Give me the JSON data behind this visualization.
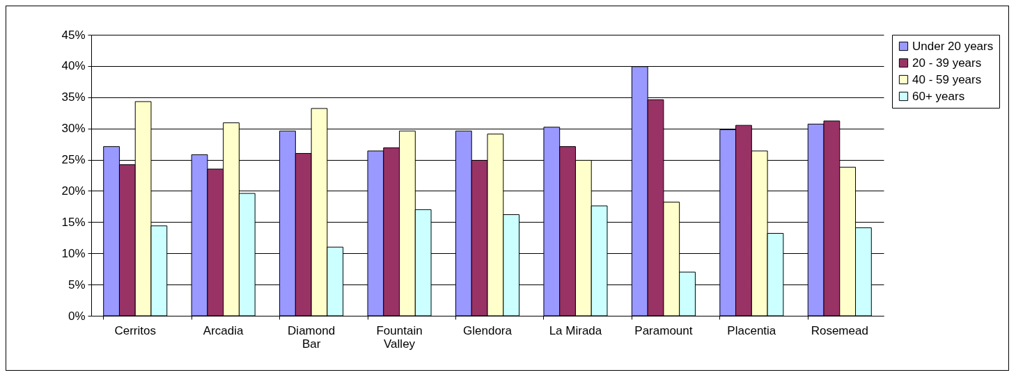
{
  "chart_data": {
    "type": "bar",
    "categories": [
      "Cerritos",
      "Arcadia",
      "Diamond Bar",
      "Fountain Valley",
      "Glendora",
      "La Mirada",
      "Paramount",
      "Placentia",
      "Rosemead"
    ],
    "series": [
      {
        "name": "Under 20 years",
        "color": "#9999ff",
        "values": [
          27.1,
          25.8,
          29.6,
          26.4,
          29.6,
          30.2,
          39.9,
          29.8,
          30.7
        ]
      },
      {
        "name": "20 - 39 years",
        "color": "#993366",
        "values": [
          24.2,
          23.5,
          26.0,
          26.9,
          24.9,
          27.1,
          34.6,
          30.5,
          31.2
        ]
      },
      {
        "name": "40 - 59 years",
        "color": "#ffffcc",
        "values": [
          34.3,
          30.9,
          33.2,
          29.6,
          29.1,
          24.9,
          18.2,
          26.4,
          23.8
        ]
      },
      {
        "name": "60+ years",
        "color": "#ccffff",
        "values": [
          14.4,
          19.6,
          11.0,
          17.0,
          16.2,
          17.6,
          7.0,
          13.2,
          14.1
        ]
      }
    ],
    "ylim": [
      0,
      45
    ],
    "yticks": [
      {
        "value": 0,
        "label": "0%"
      },
      {
        "value": 5,
        "label": "5%"
      },
      {
        "value": 10,
        "label": "10%"
      },
      {
        "value": 15,
        "label": "15%"
      },
      {
        "value": 20,
        "label": "20%"
      },
      {
        "value": 25,
        "label": "25%"
      },
      {
        "value": 30,
        "label": "30%"
      },
      {
        "value": 35,
        "label": "35%"
      },
      {
        "value": 40,
        "label": "40%"
      },
      {
        "value": 45,
        "label": "45%"
      }
    ],
    "grid": "y",
    "legend": "right"
  }
}
